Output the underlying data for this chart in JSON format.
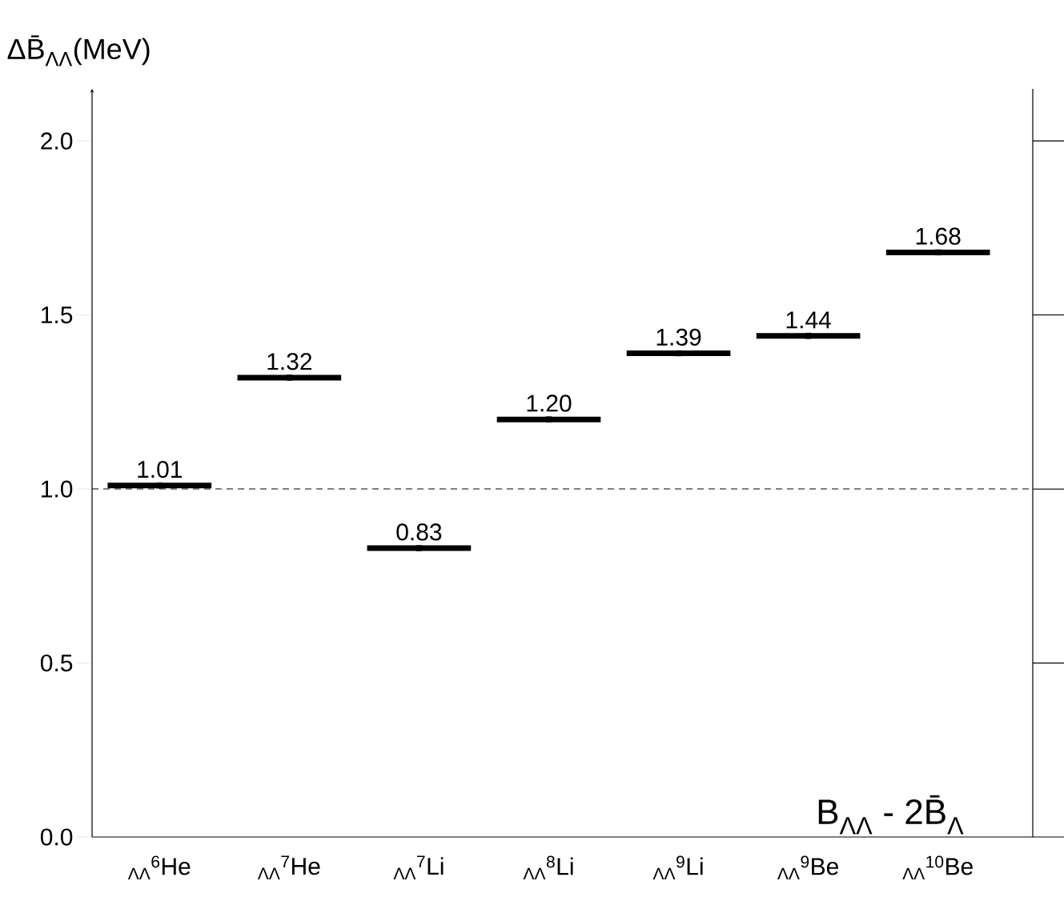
{
  "chart_data": {
    "type": "scatter",
    "ylabel": "ΔB̄$_{ΛΛ}$(MeV)",
    "categories": [
      "$_{ΛΛ}$$^{6}$He",
      "$_{ΛΛ}$$^{7}$He",
      "$_{ΛΛ}$$^{7}$Li",
      "$_{ΛΛ}$$^{8}$Li",
      "$_{ΛΛ}$$^{9}$Li",
      "$_{ΛΛ}$$^{9}$Be",
      "$_{ΛΛ}$$^{10}$Be"
    ],
    "values": [
      1.01,
      1.32,
      0.83,
      1.2,
      1.39,
      1.44,
      1.68
    ],
    "color": "#000000",
    "value_labels": [
      "1.01",
      "1.32",
      "0.83",
      "1.20",
      "1.39",
      "1.44",
      "1.68"
    ],
    "ylim": [
      0,
      2.15
    ],
    "yticks": [
      {
        "value": 0,
        "label": "0.0"
      },
      {
        "value": 0.5,
        "label": "0.5"
      },
      {
        "value": 1,
        "label": "1.0"
      },
      {
        "value": 1.5,
        "label": "1.5"
      },
      {
        "value": 2,
        "label": "2.0"
      }
    ],
    "ref_lines": [
      {
        "axis": "y",
        "value": 1,
        "line_style": "dashed"
      }
    ],
    "annotations": [
      "B$_{ΛΛ}$ - 2B̄$_{Λ}$"
    ]
  }
}
